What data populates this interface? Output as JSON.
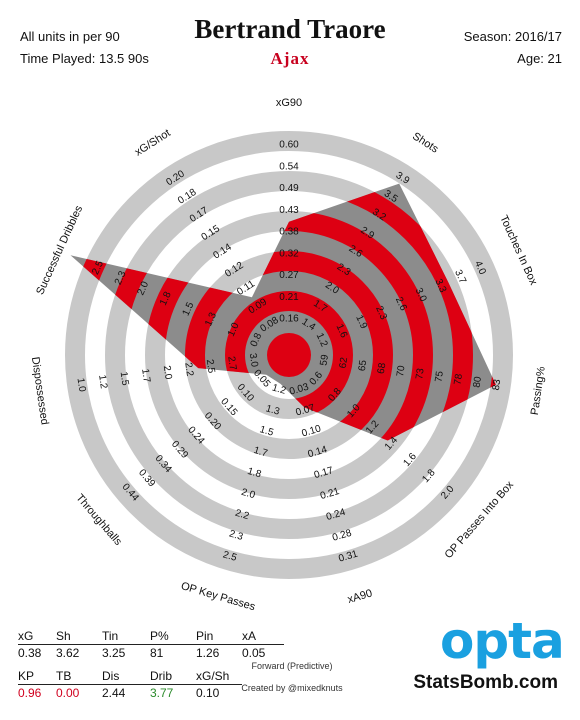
{
  "header": {
    "units": "All units in per 90",
    "time_played": "Time Played: 13.5 90s",
    "player": "Bertrand Traore",
    "team": "Ajax",
    "season": "Season: 2016/17",
    "age": "Age: 21"
  },
  "colors": {
    "ring": "#c8c8c8",
    "fill_red": "#dd0012",
    "fill_grey": "#8c8c8c",
    "team": "#c8001e",
    "opta": "#1aa0e0"
  },
  "chart_data": {
    "type": "radar",
    "axes": [
      {
        "label": "xG90",
        "ticks": [
          "0.16",
          "0.21",
          "0.27",
          "0.32",
          "0.38",
          "0.43",
          "0.49",
          "0.54",
          "0.60"
        ],
        "value": 0.38,
        "min": 0.11,
        "max": 0.6
      },
      {
        "label": "Shots",
        "ticks": [
          "1.4",
          "1.7",
          "2.0",
          "2.3",
          "2.6",
          "2.9",
          "3.2",
          "3.5",
          "3.9"
        ],
        "value": 3.62,
        "min": 1.1,
        "max": 3.9
      },
      {
        "label": "Touches In Box",
        "ticks": [
          "1.2",
          "1.6",
          "1.9",
          "2.3",
          "2.6",
          "3.0",
          "3.3",
          "3.7",
          "4.0"
        ],
        "value": 3.25,
        "min": 0.9,
        "max": 4.0
      },
      {
        "label": "Passing%",
        "ticks": [
          "59",
          "62",
          "65",
          "68",
          "70",
          "73",
          "75",
          "78",
          "80",
          "83"
        ],
        "value": 81,
        "min": 56,
        "max": 83
      },
      {
        "label": "OP Passes Into Box",
        "ticks": [
          "0.6",
          "0.8",
          "1.0",
          "1.2",
          "1.4",
          "1.6",
          "1.8",
          "2.0"
        ],
        "value": 1.26,
        "min": 0.4,
        "max": 2.0
      },
      {
        "label": "xA90",
        "ticks": [
          "0.03",
          "0.07",
          "0.10",
          "0.14",
          "0.17",
          "0.21",
          "0.24",
          "0.28",
          "0.31"
        ],
        "value": 0.05,
        "min": 0.0,
        "max": 0.31
      },
      {
        "label": "OP Key Passes",
        "ticks": [
          "1.2",
          "1.3",
          "1.5",
          "1.7",
          "1.8",
          "2.0",
          "2.2",
          "2.3",
          "2.5"
        ],
        "value": 0.96,
        "min": 1.0,
        "max": 2.5
      },
      {
        "label": "Throughballs",
        "ticks": [
          "0.05",
          "0.10",
          "0.15",
          "0.20",
          "0.24",
          "0.29",
          "0.34",
          "0.39",
          "0.44"
        ],
        "value": 0.0,
        "min": 0.0,
        "max": 0.44
      },
      {
        "label": "Dispossessed",
        "ticks": [
          "3.0",
          "2.7",
          "2.5",
          "2.2",
          "2.0",
          "1.7",
          "1.5",
          "1.2",
          "1.0"
        ],
        "value": 2.44,
        "min": 3.2,
        "max": 1.0
      },
      {
        "label": "Successful Dribbles",
        "ticks": [
          "0.8",
          "1.0",
          "1.3",
          "1.5",
          "1.8",
          "2.0",
          "2.3",
          "2.5"
        ],
        "value": 3.77,
        "min": 0.5,
        "max": 2.5
      },
      {
        "label": "xG/Shot",
        "ticks": [
          "0.08",
          "0.09",
          "0.11",
          "0.12",
          "0.14",
          "0.15",
          "0.17",
          "0.18",
          "0.20"
        ],
        "value": 0.1,
        "min": 0.07,
        "max": 0.2
      }
    ]
  },
  "stats": {
    "row1_labels": [
      "xG",
      "Sh",
      "Tin",
      "P%",
      "Pin",
      "xA"
    ],
    "row1_values": [
      "0.38",
      "3.62",
      "3.25",
      "81",
      "1.26",
      "0.05"
    ],
    "row2_labels": [
      "KP",
      "TB",
      "Dis",
      "Drib",
      "xG/Sh"
    ],
    "row2_values": [
      "0.96",
      "0.00",
      "2.44",
      "3.77",
      "0.10"
    ]
  },
  "footer": {
    "position": "Forward (Predictive)",
    "credit": "Created by @mixedknuts",
    "opta": "opta",
    "brand": "StatsBomb.com"
  }
}
